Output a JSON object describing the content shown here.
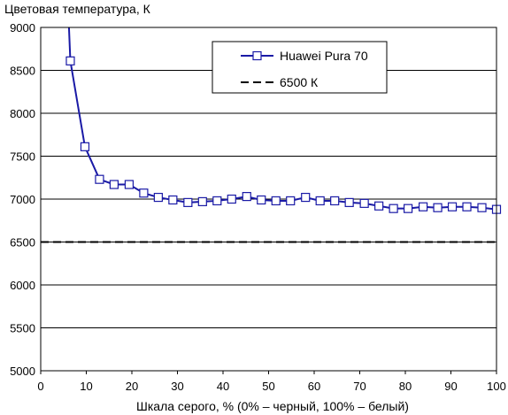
{
  "chart_data": {
    "type": "line",
    "title": "",
    "ylabel": "Цветовая температура, К",
    "xlabel": "Шкала серого, % (0% – черный, 100% – белый)",
    "xlim": [
      0,
      100
    ],
    "ylim": [
      5000,
      9000
    ],
    "x_ticks": [
      0,
      10,
      20,
      30,
      40,
      50,
      60,
      70,
      80,
      90,
      100
    ],
    "y_ticks": [
      5000,
      5500,
      6000,
      6500,
      7000,
      7500,
      8000,
      8500,
      9000
    ],
    "grid": "horizontal",
    "legend_position": "top-right",
    "series": [
      {
        "name": "Huawei Pura 70",
        "color": "#1a1aa6",
        "marker": "square",
        "x": [
          6.5,
          9.7,
          12.9,
          16.1,
          19.4,
          22.6,
          25.8,
          29.0,
          32.3,
          35.5,
          38.7,
          41.9,
          45.2,
          48.4,
          51.6,
          54.8,
          58.1,
          61.3,
          64.5,
          67.7,
          71.0,
          74.2,
          77.4,
          80.6,
          83.9,
          87.1,
          90.3,
          93.5,
          96.8,
          100
        ],
        "y": [
          8610,
          7610,
          7230,
          7170,
          7170,
          7070,
          7020,
          6990,
          6960,
          6970,
          6980,
          7000,
          7030,
          6990,
          6980,
          6980,
          7020,
          6980,
          6980,
          6960,
          6950,
          6920,
          6890,
          6890,
          6910,
          6900,
          6910,
          6910,
          6900,
          6880
        ],
        "lead_in": {
          "x": [
            6.2
          ],
          "y": [
            9000
          ]
        }
      },
      {
        "name": "6500 К",
        "color": "#000000",
        "style": "dashed",
        "x": [
          0,
          100
        ],
        "y": [
          6500,
          6500
        ]
      }
    ]
  }
}
